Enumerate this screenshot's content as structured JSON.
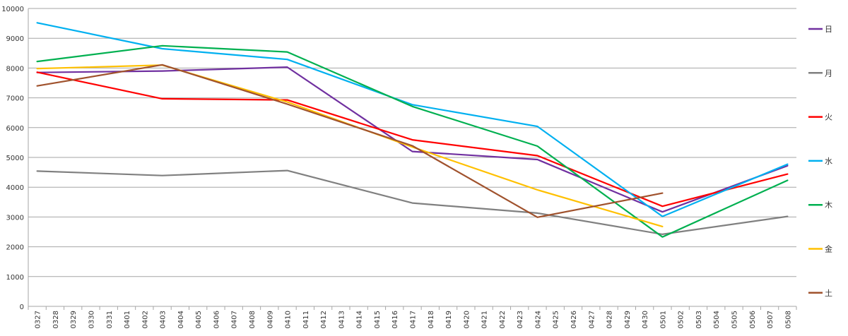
{
  "chart_data": {
    "type": "line",
    "categories": [
      "0327",
      "0328",
      "0329",
      "0330",
      "0331",
      "0401",
      "0402",
      "0403",
      "0404",
      "0405",
      "0406",
      "0407",
      "0408",
      "0409",
      "0410",
      "0411",
      "0412",
      "0413",
      "0414",
      "0415",
      "0416",
      "0417",
      "0418",
      "0419",
      "0420",
      "0421",
      "0422",
      "0423",
      "0424",
      "0425",
      "0426",
      "0427",
      "0428",
      "0429",
      "0430",
      "0501",
      "0502",
      "0503",
      "0504",
      "0505",
      "0506",
      "0507",
      "0508"
    ],
    "ylim": [
      0,
      10000
    ],
    "yticks": [
      0,
      1000,
      2000,
      3000,
      4000,
      5000,
      6000,
      7000,
      8000,
      9000,
      10000
    ],
    "grid": true,
    "legend_position": "right",
    "series": [
      {
        "name": "日",
        "color": "#7030a0",
        "points": [
          [
            "0327",
            7850
          ],
          [
            "0403",
            7900
          ],
          [
            "0410",
            8030
          ],
          [
            "0417",
            5200
          ],
          [
            "0424",
            4930
          ],
          [
            "0501",
            3170
          ],
          [
            "0508",
            4720
          ]
        ]
      },
      {
        "name": "月",
        "color": "#808080",
        "points": [
          [
            "0327",
            4540
          ],
          [
            "0403",
            4390
          ],
          [
            "0410",
            4560
          ],
          [
            "0417",
            3470
          ],
          [
            "0424",
            3130
          ],
          [
            "0501",
            2420
          ],
          [
            "0508",
            3020
          ]
        ]
      },
      {
        "name": "火",
        "color": "#ff0000",
        "points": [
          [
            "0327",
            7860
          ],
          [
            "0403",
            6970
          ],
          [
            "0410",
            6930
          ],
          [
            "0417",
            5590
          ],
          [
            "0424",
            5060
          ],
          [
            "0501",
            3360
          ],
          [
            "0508",
            4440
          ]
        ]
      },
      {
        "name": "水",
        "color": "#00b0f0",
        "points": [
          [
            "0327",
            9520
          ],
          [
            "0403",
            8650
          ],
          [
            "0410",
            8290
          ],
          [
            "0417",
            6770
          ],
          [
            "0424",
            6040
          ],
          [
            "0501",
            3020
          ],
          [
            "0508",
            4770
          ]
        ]
      },
      {
        "name": "木",
        "color": "#00b050",
        "points": [
          [
            "0327",
            8220
          ],
          [
            "0403",
            8750
          ],
          [
            "0410",
            8540
          ],
          [
            "0417",
            6710
          ],
          [
            "0424",
            5380
          ],
          [
            "0501",
            2330
          ],
          [
            "0508",
            4230
          ]
        ]
      },
      {
        "name": "金",
        "color": "#ffc000",
        "points": [
          [
            "0327",
            7980
          ],
          [
            "0403",
            8100
          ],
          [
            "0410",
            6860
          ],
          [
            "0417",
            5350
          ],
          [
            "0424",
            3910
          ],
          [
            "0501",
            2680
          ]
        ]
      },
      {
        "name": "土",
        "color": "#a0522d",
        "points": [
          [
            "0327",
            7400
          ],
          [
            "0403",
            8110
          ],
          [
            "0410",
            6790
          ],
          [
            "0417",
            5390
          ],
          [
            "0424",
            2990
          ],
          [
            "0501",
            3800
          ]
        ]
      }
    ]
  }
}
